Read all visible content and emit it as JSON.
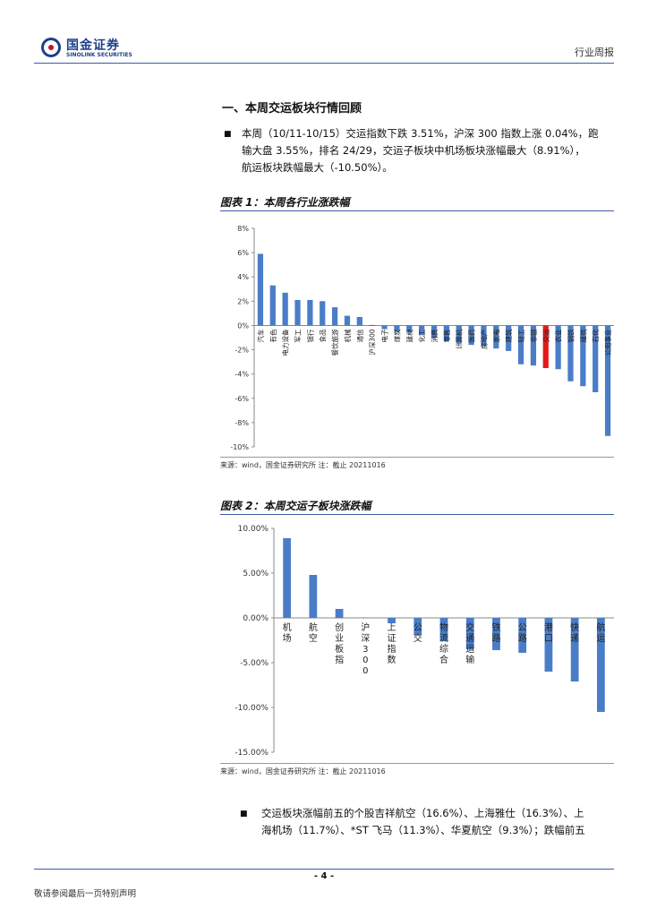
{
  "header": {
    "logo_cn": "国金证券",
    "logo_en": "SINOLINK SECURITIES",
    "right": "行业周报"
  },
  "section_title": "一、本周交运板块行情回顾",
  "bullet1_lines": [
    "本周（10/11-10/15）交运指数下跌 3.51%，沪深 300 指数上涨 0.04%，跑",
    "输大盘 3.55%，排名 24/29，交运子板块中机场板块涨幅最大（8.91%），",
    "航运板块跌幅最大（-10.50%）。"
  ],
  "chart1": {
    "caption": "图表 1：本周各行业涨跌幅",
    "source": "来源：wind，国金证券研究所 注：截止 20211016"
  },
  "chart2": {
    "caption": "图表 2：本周交运子板块涨跌幅",
    "source": "来源：wind，国金证券研究所 注：截止 20211016"
  },
  "bullet2_lines": [
    "交运板块涨幅前五的个股吉祥航空（16.6%）、上海雅仕（16.3%）、上",
    "海机场（11.7%）、*ST 飞马（11.3%）、华夏航空（9.3%）；跌幅前五"
  ],
  "footer": {
    "page": "- 4 -",
    "note": "敬请参阅最后一页特别声明"
  },
  "chart_data": [
    {
      "type": "bar",
      "ylim": [
        -10,
        8
      ],
      "yticks": [
        "8%",
        "6%",
        "4%",
        "2%",
        "0%",
        "-2%",
        "-4%",
        "-6%",
        "-8%",
        "-10%"
      ],
      "categories": [
        "汽车",
        "有色",
        "电力设备",
        "军工",
        "银行",
        "食品",
        "餐饮旅游",
        "机械",
        "通信",
        "沪深300",
        "电子",
        "煤炭",
        "建材",
        "化工",
        "消费",
        "零售",
        "计算机",
        "医药",
        "房地产",
        "家电",
        "建筑",
        "轻工",
        "非银",
        "交运",
        "农业",
        "钢铁",
        "建筑",
        "石化",
        "公用事业"
      ],
      "values": [
        5.9,
        3.3,
        2.7,
        2.1,
        2.1,
        2.0,
        1.5,
        0.8,
        0.7,
        0.04,
        -0.3,
        -0.5,
        -0.6,
        -0.8,
        -1.0,
        -1.3,
        -1.5,
        -1.6,
        -1.7,
        -1.9,
        -2.1,
        -3.2,
        -3.3,
        -3.51,
        -3.6,
        -4.6,
        -5.0,
        -5.5,
        -9.1
      ],
      "highlight": [
        "沪深300",
        "交运"
      ],
      "colors": {
        "bar": "#4a7dc8",
        "highlight": "#e11b1b"
      }
    },
    {
      "type": "bar",
      "ylim": [
        -15,
        10
      ],
      "yticks": [
        "10.00%",
        "5.00%",
        "0.00%",
        "-5.00%",
        "-10.00%",
        "-15.00%"
      ],
      "categories": [
        "机场",
        "航空",
        "创业板指",
        "沪深300",
        "上证指数",
        "公交",
        "物流综合",
        "交通运输",
        "铁路",
        "公路",
        "港口",
        "快递",
        "航运"
      ],
      "values": [
        8.91,
        4.8,
        1.0,
        0.04,
        -0.6,
        -1.9,
        -2.6,
        -3.51,
        -3.6,
        -3.9,
        -6.0,
        -7.1,
        -10.5
      ],
      "colors": {
        "bar": "#4a7dc8"
      }
    }
  ]
}
